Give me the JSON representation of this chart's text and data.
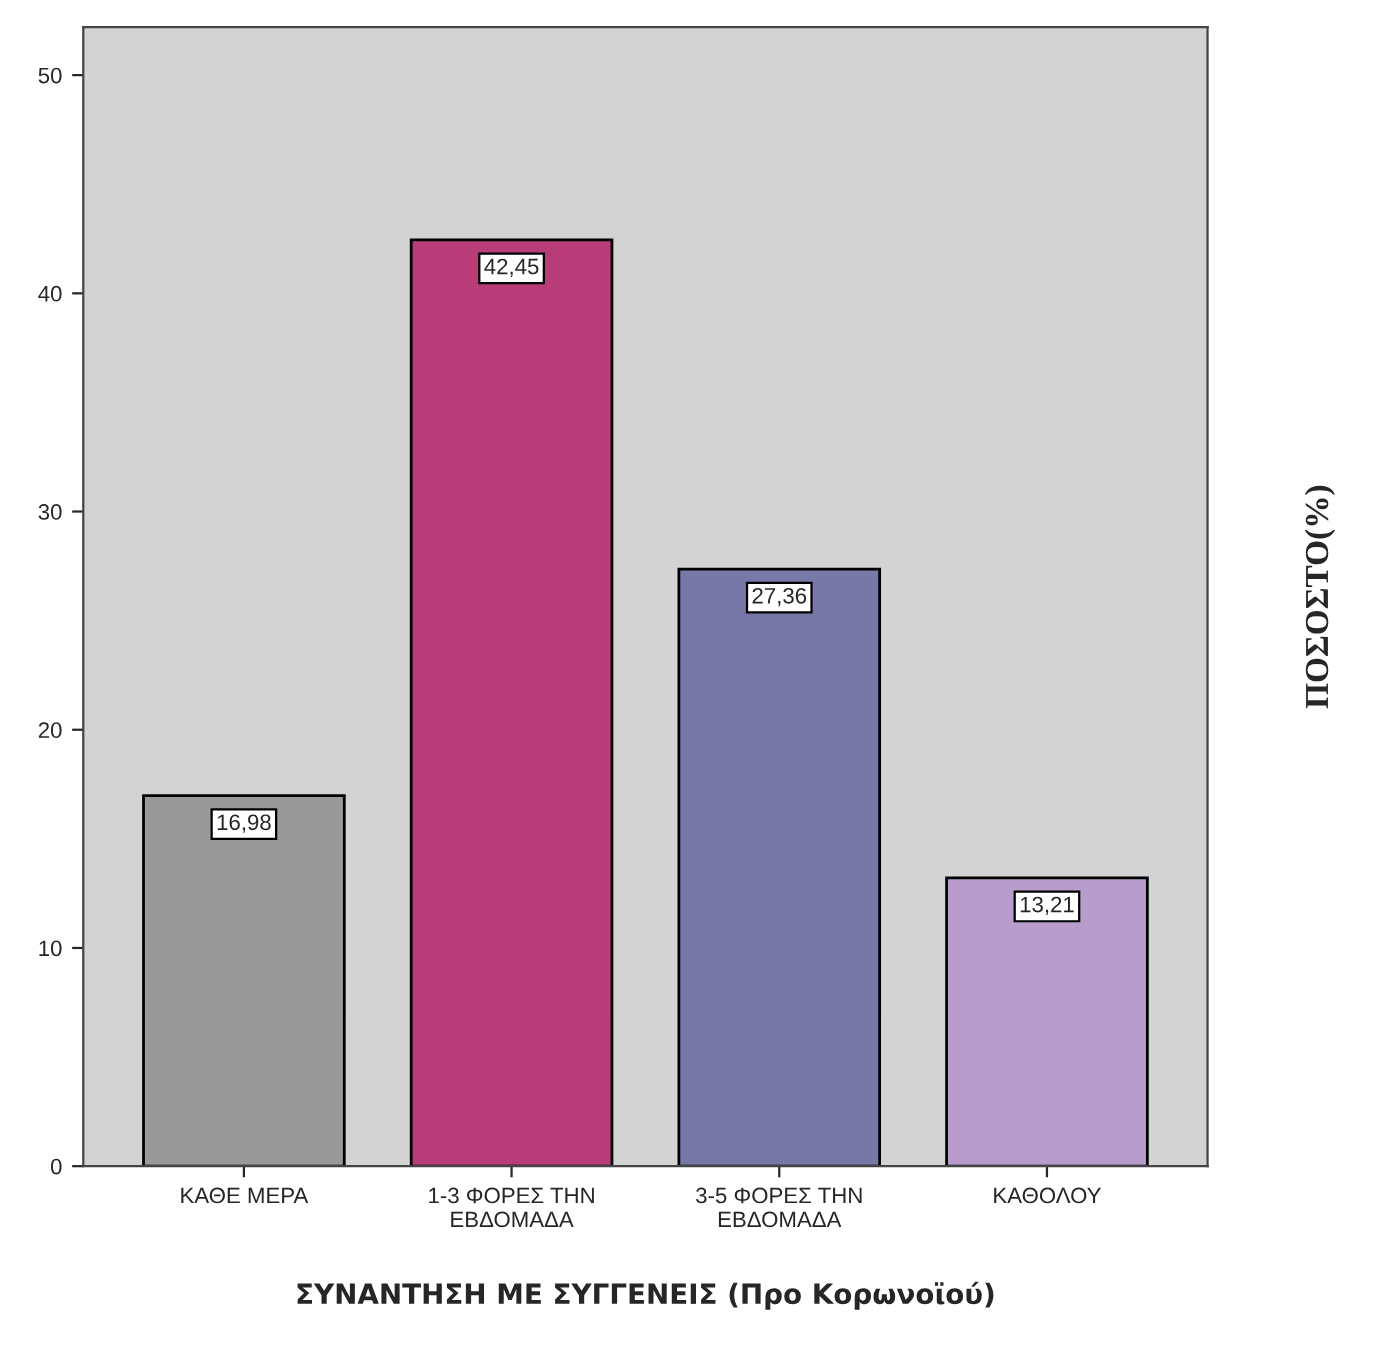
{
  "chart_data": {
    "type": "bar",
    "xlabel": "ΣΥΝΑΝΤΗΣΗ ΜΕ ΣΥΓΓΕΝΕΙΣ (Προ Κορωνοϊού)",
    "ylabel": "ΠΟΣΟΣΤΟ(%)",
    "categories": [
      "ΚΑΘΕ ΜΕΡΑ",
      "1-3 ΦΟΡΕΣ ΤΗΝ\nΕΒΔΟΜΑΔΑ",
      "3-5 ΦΟΡΕΣ ΤΗΝ\nΕΒΔΟΜΑΔΑ",
      "ΚΑΘΟΛΟΥ"
    ],
    "values": [
      16.98,
      42.45,
      27.36,
      13.21
    ],
    "value_labels": [
      "16,98",
      "42,45",
      "27,36",
      "13,21"
    ],
    "colors": [
      "#999999",
      "#b83c78",
      "#7878a8",
      "#b89ccc"
    ],
    "ylim": [
      0,
      52.2
    ],
    "yticks": [
      0,
      10,
      20,
      30,
      40,
      50
    ],
    "grid": false,
    "legend": false
  }
}
